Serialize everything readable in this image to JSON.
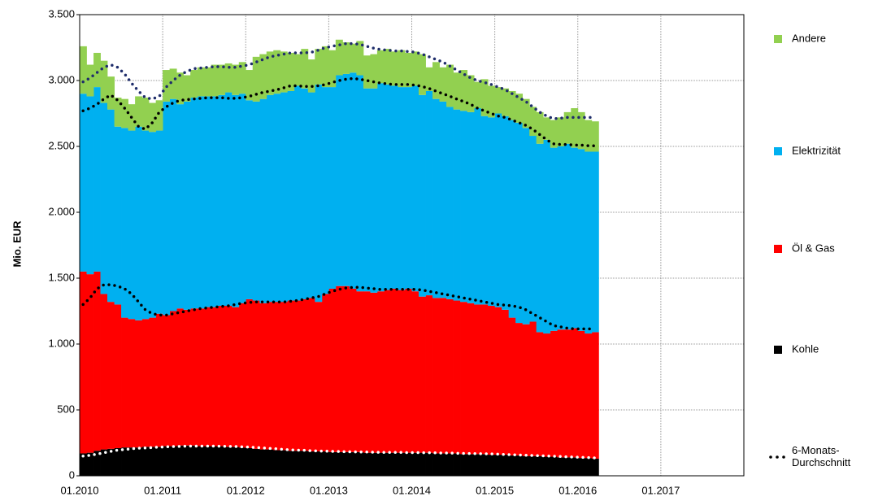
{
  "chart_data": {
    "type": "stacked_bar",
    "y_label": "Mio. EUR",
    "xlim": [
      2010,
      2018
    ],
    "xticks": [
      {
        "value": 2010,
        "label": "01.2010"
      },
      {
        "value": 2011,
        "label": "01.2011"
      },
      {
        "value": 2012,
        "label": "01.2012"
      },
      {
        "value": 2013,
        "label": "01.2013"
      },
      {
        "value": 2014,
        "label": "01.2014"
      },
      {
        "value": 2015,
        "label": "01.2015"
      },
      {
        "value": 2016,
        "label": "01.2016"
      },
      {
        "value": 2017,
        "label": "01.2017"
      }
    ],
    "ylim": [
      0,
      3500
    ],
    "yticks": [
      0,
      500,
      {
        "value": 1000,
        "label": "1.000"
      },
      {
        "value": 1500,
        "label": "1.500"
      },
      {
        "value": 2000,
        "label": "2.000"
      },
      {
        "value": 2500,
        "label": "2.500"
      },
      {
        "value": 3000,
        "label": "3.000"
      },
      {
        "value": 3500,
        "label": "3.500"
      }
    ],
    "grid": true,
    "legend": "right",
    "average_label": "6-Monats-Durchschnitt",
    "x": [
      2010,
      2010.083,
      2010.167,
      2010.25,
      2010.333,
      2010.417,
      2010.5,
      2010.583,
      2010.667,
      2010.75,
      2010.833,
      2010.917,
      2011,
      2011.083,
      2011.167,
      2011.25,
      2011.333,
      2011.417,
      2011.5,
      2011.583,
      2011.667,
      2011.75,
      2011.833,
      2011.917,
      2012,
      2012.083,
      2012.167,
      2012.25,
      2012.333,
      2012.417,
      2012.5,
      2012.583,
      2012.667,
      2012.75,
      2012.833,
      2012.917,
      2013,
      2013.083,
      2013.167,
      2013.25,
      2013.333,
      2013.417,
      2013.5,
      2013.583,
      2013.667,
      2013.75,
      2013.833,
      2013.917,
      2014,
      2014.083,
      2014.167,
      2014.25,
      2014.333,
      2014.417,
      2014.5,
      2014.583,
      2014.667,
      2014.75,
      2014.833,
      2014.917,
      2015,
      2015.083,
      2015.167,
      2015.25,
      2015.333,
      2015.417,
      2015.5,
      2015.583,
      2015.667,
      2015.75,
      2015.833,
      2015.917,
      2016,
      2016.083,
      2016.167
    ],
    "series": [
      {
        "name": "Kohle",
        "color": "#000000",
        "avg_color": "#ffffff",
        "values": [
          170,
          175,
          190,
          200,
          205,
          210,
          215,
          215,
          215,
          220,
          220,
          220,
          225,
          225,
          230,
          230,
          230,
          225,
          225,
          225,
          225,
          220,
          220,
          215,
          210,
          205,
          200,
          200,
          195,
          195,
          190,
          190,
          190,
          185,
          185,
          185,
          180,
          180,
          180,
          180,
          180,
          175,
          175,
          175,
          175,
          175,
          175,
          175,
          175,
          175,
          175,
          170,
          170,
          170,
          170,
          165,
          165,
          165,
          165,
          160,
          160,
          160,
          155,
          155,
          150,
          150,
          150,
          145,
          145,
          140,
          140,
          140,
          135,
          135,
          130
        ],
        "avg_values": [
          150,
          155,
          165,
          175,
          185,
          195,
          200,
          205,
          210,
          212,
          215,
          218,
          220,
          222,
          223,
          225,
          225,
          225,
          225,
          225,
          224,
          223,
          222,
          220,
          218,
          215,
          212,
          208,
          205,
          200,
          197,
          195,
          193,
          190,
          188,
          187,
          185,
          184,
          183,
          182,
          181,
          180,
          179,
          178,
          178,
          177,
          177,
          176,
          176,
          175,
          175,
          174,
          173,
          172,
          171,
          170,
          169,
          168,
          167,
          166,
          164,
          162,
          160,
          158,
          156,
          154,
          152,
          150,
          148,
          146,
          144,
          142,
          140,
          138,
          136
        ]
      },
      {
        "name": "Öl & Gas",
        "color": "#ff0000",
        "avg_color": "#000000",
        "values": [
          1380,
          1355,
          1360,
          1180,
          1115,
          1090,
          985,
          975,
          965,
          970,
          980,
          1010,
          995,
          1025,
          1040,
          1030,
          1040,
          1045,
          1055,
          1055,
          1065,
          1070,
          1060,
          1095,
          1130,
          1125,
          1110,
          1120,
          1125,
          1125,
          1140,
          1140,
          1150,
          1165,
          1135,
          1195,
          1240,
          1260,
          1260,
          1240,
          1220,
          1225,
          1215,
          1225,
          1235,
          1245,
          1235,
          1245,
          1225,
          1185,
          1195,
          1180,
          1180,
          1170,
          1160,
          1155,
          1145,
          1135,
          1135,
          1130,
          1120,
          1100,
          1045,
          1005,
          1000,
          1020,
          940,
          935,
          955,
          970,
          970,
          980,
          965,
          945,
          960
        ],
        "avg_values": [
          1150,
          1195,
          1255,
          1275,
          1265,
          1245,
          1220,
          1175,
          1110,
          1048,
          1015,
          1002,
          1000,
          1008,
          1017,
          1025,
          1035,
          1045,
          1050,
          1055,
          1061,
          1067,
          1078,
          1090,
          1097,
          1105,
          1108,
          1112,
          1115,
          1120,
          1128,
          1135,
          1147,
          1160,
          1172,
          1193,
          1215,
          1231,
          1242,
          1248,
          1249,
          1245,
          1241,
          1237,
          1237,
          1238,
          1238,
          1239,
          1239,
          1235,
          1225,
          1216,
          1207,
          1198,
          1189,
          1180,
          1171,
          1162,
          1153,
          1144,
          1136,
          1133,
          1130,
          1122,
          1104,
          1076,
          1048,
          1020,
          992,
          984,
          976,
          973,
          975,
          977,
          979
        ]
      },
      {
        "name": "Elektrizität",
        "color": "#00b0f0",
        "avg_color": "#000000",
        "values": [
          1350,
          1350,
          1400,
          1450,
          1460,
          1350,
          1440,
          1430,
          1470,
          1430,
          1410,
          1390,
          1620,
          1610,
          1550,
          1580,
          1600,
          1610,
          1600,
          1600,
          1600,
          1620,
          1610,
          1590,
          1510,
          1510,
          1550,
          1570,
          1580,
          1590,
          1590,
          1630,
          1600,
          1560,
          1650,
          1570,
          1530,
          1600,
          1610,
          1640,
          1640,
          1540,
          1550,
          1580,
          1560,
          1540,
          1540,
          1530,
          1560,
          1530,
          1550,
          1510,
          1490,
          1460,
          1450,
          1450,
          1450,
          1490,
          1430,
          1430,
          1470,
          1470,
          1500,
          1520,
          1490,
          1410,
          1430,
          1470,
          1390,
          1390,
          1410,
          1370,
          1380,
          1380,
          1370
        ],
        "avg_values": [
          1470,
          1440,
          1400,
          1410,
          1440,
          1410,
          1370,
          1340,
          1330,
          1370,
          1450,
          1540,
          1580,
          1600,
          1610,
          1605,
          1600,
          1595,
          1595,
          1590,
          1585,
          1575,
          1565,
          1560,
          1565,
          1575,
          1590,
          1600,
          1610,
          1625,
          1635,
          1630,
          1615,
          1605,
          1600,
          1590,
          1585,
          1585,
          1585,
          1585,
          1580,
          1575,
          1570,
          1565,
          1560,
          1555,
          1555,
          1555,
          1550,
          1545,
          1540,
          1530,
          1520,
          1510,
          1500,
          1490,
          1480,
          1460,
          1450,
          1440,
          1430,
          1425,
          1410,
          1400,
          1400,
          1400,
          1390,
          1380,
          1380,
          1385,
          1395,
          1395,
          1395,
          1390,
          1390
        ]
      },
      {
        "name": "Andere",
        "color": "#92d050",
        "avg_color": "#1f2d6b",
        "values": [
          360,
          240,
          260,
          320,
          250,
          220,
          220,
          200,
          230,
          250,
          220,
          230,
          240,
          230,
          240,
          200,
          210,
          220,
          220,
          240,
          230,
          220,
          230,
          240,
          230,
          340,
          340,
          330,
          330,
          310,
          290,
          240,
          300,
          250,
          270,
          310,
          280,
          270,
          240,
          220,
          260,
          250,
          260,
          250,
          270,
          260,
          280,
          260,
          260,
          310,
          180,
          280,
          260,
          320,
          280,
          310,
          280,
          200,
          280,
          240,
          200,
          210,
          220,
          220,
          220,
          220,
          240,
          170,
          210,
          220,
          240,
          300,
          280,
          240,
          230
        ],
        "avg_values": [
          220,
          230,
          240,
          240,
          230,
          250,
          260,
          260,
          270,
          240,
          180,
          120,
          150,
          170,
          190,
          215,
          230,
          230,
          230,
          235,
          235,
          235,
          235,
          240,
          240,
          245,
          250,
          260,
          260,
          255,
          250,
          250,
          255,
          260,
          270,
          280,
          275,
          270,
          270,
          265,
          265,
          260,
          255,
          255,
          255,
          255,
          255,
          250,
          250,
          245,
          240,
          240,
          240,
          230,
          220,
          210,
          200,
          210,
          215,
          220,
          220,
          210,
          200,
          190,
          180,
          170,
          170,
          180,
          190,
          200,
          205,
          210,
          210,
          215,
          215
        ]
      }
    ]
  }
}
